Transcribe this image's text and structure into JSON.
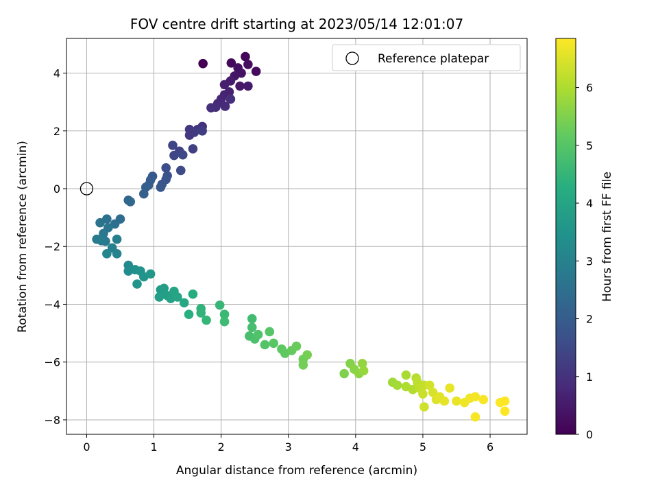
{
  "chart_data": {
    "type": "scatter",
    "title": "FOV centre drift starting at 2023/05/14 12:01:07",
    "xlabel": "Angular distance from reference (arcmin)",
    "ylabel": "Rotation from reference (arcmin)",
    "xlim": [
      -0.3,
      6.55
    ],
    "ylim": [
      -8.5,
      5.2
    ],
    "xticks": [
      0,
      1,
      2,
      3,
      4,
      5,
      6
    ],
    "yticks": [
      -8,
      -6,
      -4,
      -2,
      0,
      2,
      4
    ],
    "grid": true,
    "legend": {
      "placement": "top-right",
      "entries": [
        "Reference platepar"
      ]
    },
    "colorbar": {
      "label": "Hours from first FF file",
      "range": [
        0,
        6.85
      ],
      "ticks": [
        0,
        1,
        2,
        3,
        4,
        5,
        6
      ],
      "colormap": "viridis"
    },
    "reference_point": {
      "name": "Reference platepar",
      "x": 0,
      "y": 0
    },
    "series": [
      {
        "points": [
          [
            1.73,
            4.33,
            0.0
          ],
          [
            2.36,
            4.57,
            0.1
          ],
          [
            2.15,
            4.35,
            0.15
          ],
          [
            2.52,
            4.06,
            0.2
          ],
          [
            2.4,
            4.3,
            0.25
          ],
          [
            2.25,
            4.18,
            0.3
          ],
          [
            2.3,
            4.0,
            0.35
          ],
          [
            2.2,
            3.9,
            0.4
          ],
          [
            2.28,
            3.55,
            0.45
          ],
          [
            2.4,
            3.55,
            0.5
          ],
          [
            2.14,
            3.73,
            0.55
          ],
          [
            2.05,
            3.6,
            0.6
          ],
          [
            2.12,
            3.35,
            0.65
          ],
          [
            2.05,
            3.25,
            0.7
          ],
          [
            2.0,
            3.1,
            0.75
          ],
          [
            1.95,
            2.95,
            0.8
          ],
          [
            2.06,
            2.85,
            0.85
          ],
          [
            1.92,
            2.82,
            0.9
          ],
          [
            1.85,
            2.8,
            0.92
          ],
          [
            2.14,
            3.1,
            0.95
          ],
          [
            1.72,
            2.15,
            1.0
          ],
          [
            1.65,
            2.05,
            1.05
          ],
          [
            1.53,
            2.05,
            1.1
          ],
          [
            1.53,
            1.85,
            1.15
          ],
          [
            1.6,
            1.95,
            1.2
          ],
          [
            1.72,
            2.0,
            1.25
          ],
          [
            1.58,
            1.38,
            1.3
          ],
          [
            1.38,
            1.3,
            1.35
          ],
          [
            1.28,
            1.5,
            1.4
          ],
          [
            1.3,
            1.15,
            1.45
          ],
          [
            1.43,
            1.17,
            1.5
          ],
          [
            1.4,
            0.63,
            1.55
          ],
          [
            1.18,
            0.72,
            1.6
          ],
          [
            1.2,
            0.45,
            1.7
          ],
          [
            1.18,
            0.32,
            1.75
          ],
          [
            1.12,
            0.15,
            1.8
          ],
          [
            1.1,
            0.05,
            1.85
          ],
          [
            0.98,
            0.43,
            1.9
          ],
          [
            0.95,
            0.3,
            1.95
          ],
          [
            0.92,
            0.12,
            2.0
          ],
          [
            0.88,
            0.05,
            2.05
          ],
          [
            0.85,
            -0.18,
            2.1
          ],
          [
            0.62,
            -0.4,
            2.2
          ],
          [
            0.65,
            -0.45,
            2.3
          ],
          [
            0.5,
            -1.05,
            2.4
          ],
          [
            0.42,
            -1.22,
            2.5
          ],
          [
            0.3,
            -1.05,
            2.55
          ],
          [
            0.2,
            -1.18,
            2.6
          ],
          [
            0.32,
            -1.35,
            2.65
          ],
          [
            0.25,
            -1.55,
            2.7
          ],
          [
            0.28,
            -1.82,
            2.75
          ],
          [
            0.15,
            -1.75,
            2.8
          ],
          [
            0.22,
            -1.8,
            2.85
          ],
          [
            0.45,
            -1.75,
            2.9
          ],
          [
            0.38,
            -2.05,
            2.95
          ],
          [
            0.45,
            -2.25,
            3.0
          ],
          [
            0.3,
            -2.25,
            3.1
          ],
          [
            0.62,
            -2.65,
            3.2
          ],
          [
            0.62,
            -2.85,
            3.3
          ],
          [
            0.72,
            -2.8,
            3.4
          ],
          [
            0.8,
            -2.85,
            3.45
          ],
          [
            0.85,
            -3.05,
            3.5
          ],
          [
            0.75,
            -3.3,
            3.55
          ],
          [
            0.95,
            -2.95,
            3.6
          ],
          [
            1.1,
            -3.5,
            3.7
          ],
          [
            1.15,
            -3.45,
            3.75
          ],
          [
            1.08,
            -3.75,
            3.8
          ],
          [
            1.2,
            -3.7,
            3.85
          ],
          [
            1.25,
            -3.8,
            3.9
          ],
          [
            1.3,
            -3.55,
            3.95
          ],
          [
            1.35,
            -3.75,
            4.0
          ],
          [
            1.45,
            -3.95,
            4.1
          ],
          [
            1.58,
            -3.65,
            4.2
          ],
          [
            1.52,
            -4.35,
            4.3
          ],
          [
            1.7,
            -4.15,
            4.4
          ],
          [
            1.7,
            -4.3,
            4.45
          ],
          [
            1.78,
            -4.55,
            4.5
          ],
          [
            1.98,
            -4.03,
            4.55
          ],
          [
            2.05,
            -4.35,
            4.6
          ],
          [
            2.05,
            -4.6,
            4.65
          ],
          [
            2.46,
            -4.5,
            4.7
          ],
          [
            2.46,
            -4.8,
            4.75
          ],
          [
            2.42,
            -5.1,
            4.8
          ],
          [
            2.5,
            -5.2,
            4.85
          ],
          [
            2.55,
            -5.05,
            4.9
          ],
          [
            2.65,
            -5.4,
            4.95
          ],
          [
            2.72,
            -4.95,
            5.0
          ],
          [
            2.78,
            -5.35,
            5.05
          ],
          [
            2.9,
            -5.55,
            5.1
          ],
          [
            2.95,
            -5.7,
            5.15
          ],
          [
            3.05,
            -5.6,
            5.2
          ],
          [
            3.12,
            -5.45,
            5.25
          ],
          [
            3.22,
            -5.9,
            5.3
          ],
          [
            3.22,
            -6.1,
            5.35
          ],
          [
            3.28,
            -5.75,
            5.4
          ],
          [
            3.83,
            -6.4,
            5.5
          ],
          [
            3.92,
            -6.05,
            5.55
          ],
          [
            3.98,
            -6.25,
            5.6
          ],
          [
            4.05,
            -6.4,
            5.65
          ],
          [
            4.1,
            -6.05,
            5.7
          ],
          [
            4.12,
            -6.3,
            5.75
          ],
          [
            4.55,
            -6.7,
            5.85
          ],
          [
            4.62,
            -6.8,
            5.9
          ],
          [
            4.75,
            -6.45,
            5.95
          ],
          [
            4.75,
            -6.85,
            6.0
          ],
          [
            4.85,
            -6.95,
            6.05
          ],
          [
            4.9,
            -6.55,
            6.1
          ],
          [
            4.92,
            -6.7,
            6.15
          ],
          [
            4.95,
            -6.9,
            6.2
          ],
          [
            5.02,
            -6.8,
            6.25
          ],
          [
            5.0,
            -7.1,
            6.3
          ],
          [
            5.02,
            -7.55,
            6.35
          ],
          [
            5.1,
            -6.8,
            6.4
          ],
          [
            5.15,
            -7.05,
            6.45
          ],
          [
            5.2,
            -7.3,
            6.5
          ],
          [
            5.25,
            -7.2,
            6.55
          ],
          [
            5.32,
            -7.35,
            6.6
          ],
          [
            5.4,
            -6.9,
            6.62
          ],
          [
            5.5,
            -7.35,
            6.65
          ],
          [
            5.62,
            -7.4,
            6.7
          ],
          [
            5.7,
            -7.25,
            6.72
          ],
          [
            5.78,
            -7.2,
            6.75
          ],
          [
            5.78,
            -7.9,
            6.78
          ],
          [
            5.9,
            -7.3,
            6.8
          ],
          [
            6.15,
            -7.4,
            6.82
          ],
          [
            6.22,
            -7.35,
            6.85
          ],
          [
            6.22,
            -7.7,
            6.85
          ]
        ]
      }
    ]
  }
}
